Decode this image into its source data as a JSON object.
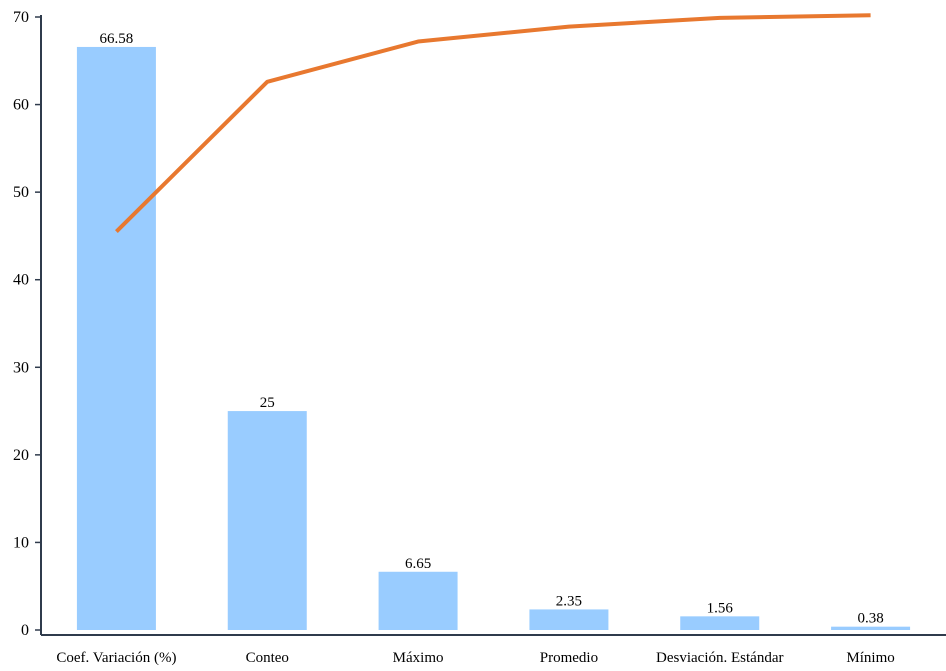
{
  "chart_data": {
    "type": "bar",
    "categories": [
      "Coef. Variación (%)",
      "Conteo",
      "Máximo",
      "Promedio",
      "Desviación. Estándar",
      "Mínimo"
    ],
    "series": [
      {
        "values": [
          66.58,
          25,
          6.65,
          2.35,
          1.56,
          0.38
        ],
        "data_labels": [
          "66.58",
          "25",
          "6.65",
          "2.35",
          "1.56",
          "0.38"
        ]
      },
      {
        "type": "line",
        "values": [
          45.5,
          62.6,
          67.2,
          68.9,
          69.9,
          70.2
        ]
      }
    ],
    "ylim": [
      0,
      70
    ],
    "yticks": [
      "0",
      "10",
      "20",
      "30",
      "40",
      "50",
      "60",
      "70"
    ],
    "grid": false,
    "colors": {
      "bars": "#99ccff",
      "line": "#e8782f",
      "axis": "#2f3b4c"
    }
  }
}
